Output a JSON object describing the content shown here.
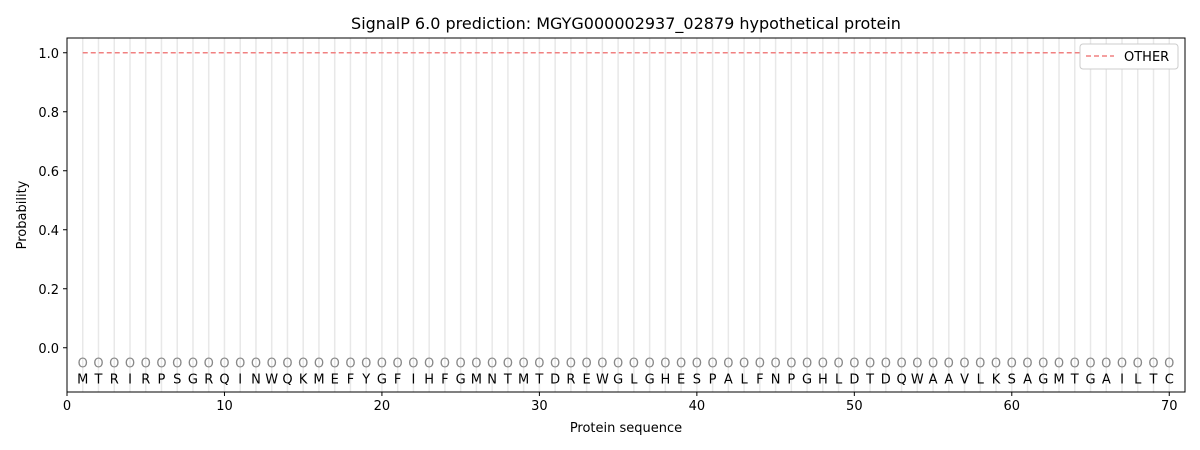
{
  "chart_data": {
    "type": "line",
    "title": "SignalP 6.0 prediction: MGYG000002937_02879 hypothetical protein",
    "xlabel": "Protein sequence",
    "ylabel": "Probability",
    "xlim": [
      0,
      71
    ],
    "ylim": [
      -0.15,
      1.05
    ],
    "xticks": [
      0,
      10,
      20,
      30,
      40,
      50,
      60,
      70
    ],
    "yticks": [
      0.0,
      0.2,
      0.4,
      0.6,
      0.8,
      1.0
    ],
    "ytick_labels": [
      "0.0",
      "0.2",
      "0.4",
      "0.6",
      "0.8",
      "1.0"
    ],
    "legend_position": "top-right",
    "grid": "vertical lines at each residue",
    "sequence": [
      "M",
      "T",
      "R",
      "I",
      "R",
      "P",
      "S",
      "G",
      "R",
      "Q",
      "I",
      "N",
      "W",
      "Q",
      "K",
      "M",
      "E",
      "F",
      "Y",
      "G",
      "F",
      "I",
      "H",
      "F",
      "G",
      "M",
      "N",
      "T",
      "M",
      "T",
      "D",
      "R",
      "E",
      "W",
      "G",
      "L",
      "G",
      "H",
      "E",
      "S",
      "P",
      "A",
      "L",
      "F",
      "N",
      "P",
      "G",
      "H",
      "L",
      "D",
      "T",
      "D",
      "Q",
      "W",
      "A",
      "A",
      "V",
      "L",
      "K",
      "S",
      "A",
      "G",
      "M",
      "T",
      "G",
      "A",
      "I",
      "L",
      "T",
      "C"
    ],
    "region_marker": "O",
    "series": [
      {
        "name": "OTHER",
        "color": "#f08080",
        "style": "dashed",
        "x_range": [
          1,
          70
        ],
        "value": 1.0
      }
    ]
  }
}
